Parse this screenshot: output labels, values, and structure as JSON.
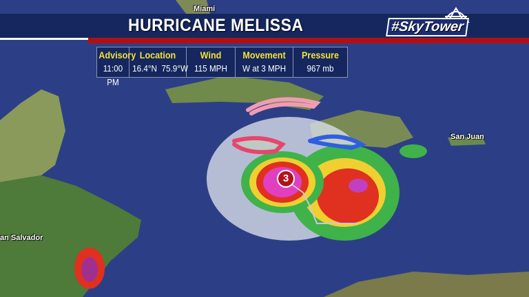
{
  "banner": {
    "title": "HURRICANE MELISSA",
    "logo": "#SkyTower"
  },
  "info": [
    {
      "label": "Advisory",
      "value": "11:00 PM"
    },
    {
      "label": "Location",
      "value": "16.4°N  75.9°W"
    },
    {
      "label": "Wind",
      "value": "115 MPH"
    },
    {
      "label": "Movement",
      "value": "W at 3 MPH"
    },
    {
      "label": "Pressure",
      "value": "967 mb"
    }
  ],
  "cities": {
    "miami": "Miami",
    "san_juan": "San Juan",
    "san_salvador": "an Salvador"
  },
  "storm": {
    "category": "3"
  },
  "colors": {
    "banner": "#15275e",
    "stripe": "#b30f12",
    "label": "#f5e23a",
    "ocean": "#2c3f86",
    "warning": "#e8456a",
    "watch": "#f29bb4",
    "tropical_storm_warning": "#2f5fe0"
  }
}
